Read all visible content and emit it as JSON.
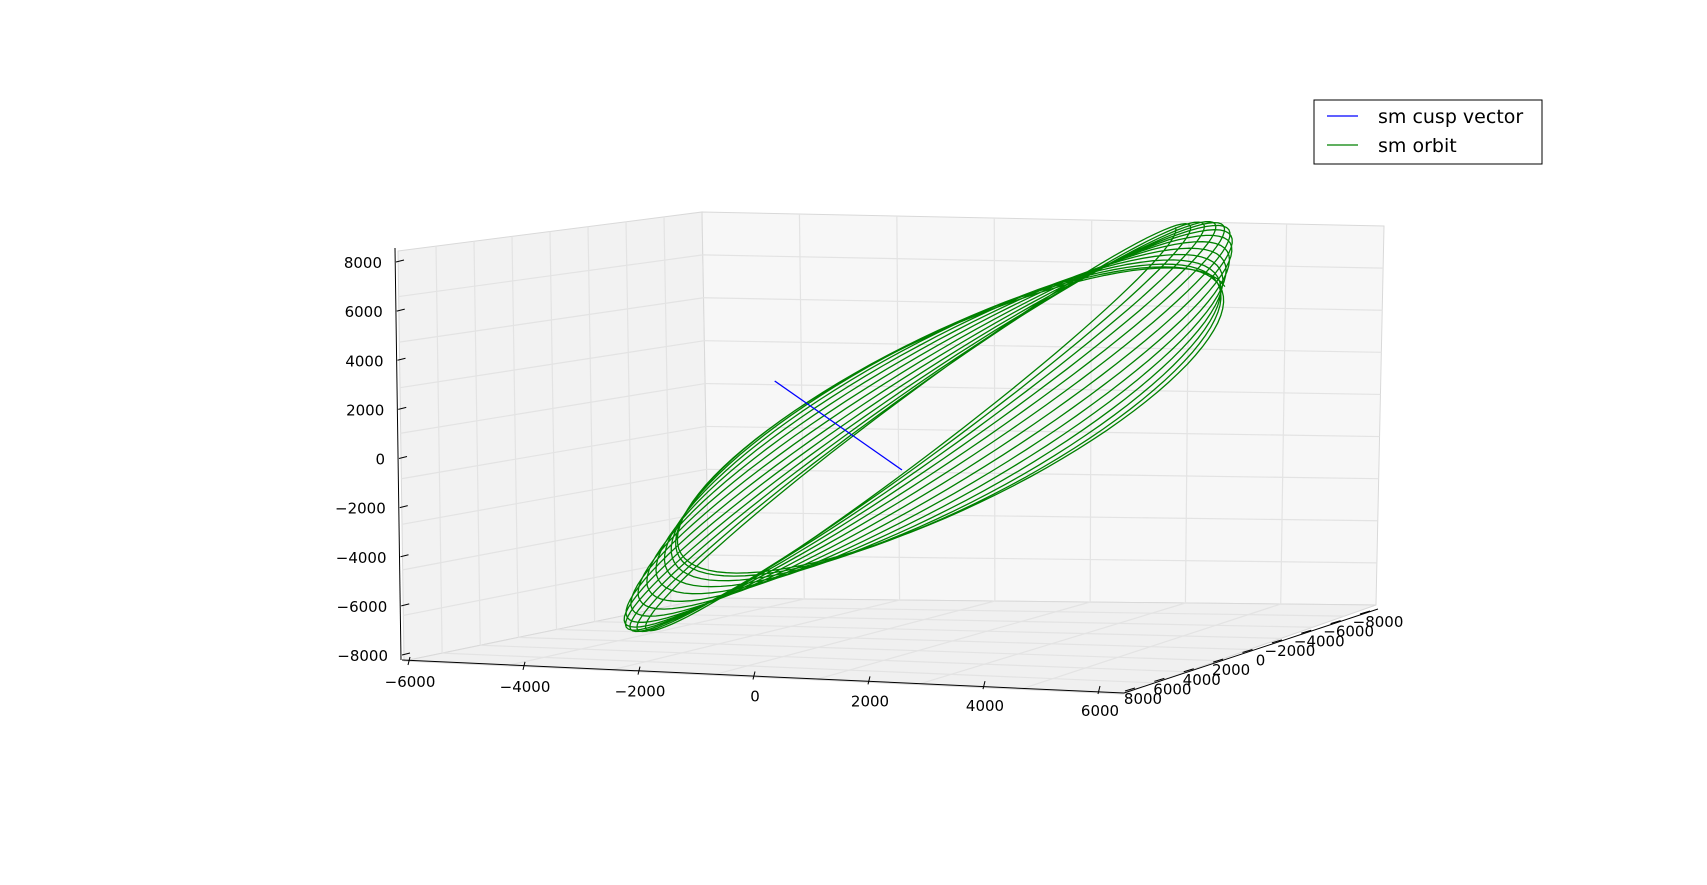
{
  "chart_data": {
    "type": "line",
    "projection": "3d",
    "title": "",
    "xlabel": "",
    "ylabel": "",
    "zlabel": "",
    "xlim": [
      -6000,
      6000
    ],
    "ylim": [
      -8000,
      8000
    ],
    "zlim": [
      -8000,
      8000
    ],
    "x_ticks": [
      "−6000",
      "−4000",
      "−2000",
      "0",
      "2000",
      "4000",
      "6000"
    ],
    "y_ticks": [
      "8000",
      "6000",
      "4000",
      "2000",
      "0",
      "−2000",
      "−4000",
      "−6000",
      "−8000"
    ],
    "z_ticks": [
      "8000",
      "6000",
      "4000",
      "2000",
      "0",
      "−2000",
      "−4000",
      "−6000",
      "−8000"
    ],
    "grid": true,
    "legend_position": "top-right",
    "series": [
      {
        "name": "sm cusp vector",
        "color": "#0000ff",
        "points": [
          [
            -1500,
            0,
            3800
          ],
          [
            1000,
            0,
            0
          ]
        ]
      },
      {
        "name": "sm orbit",
        "color": "#008000",
        "shape": "repeated inclined ellipses (~14 loops), slowly precessing",
        "x_range": [
          -4200,
          5500
        ],
        "z_range": [
          -5200,
          6900
        ],
        "loops": 14
      }
    ]
  }
}
